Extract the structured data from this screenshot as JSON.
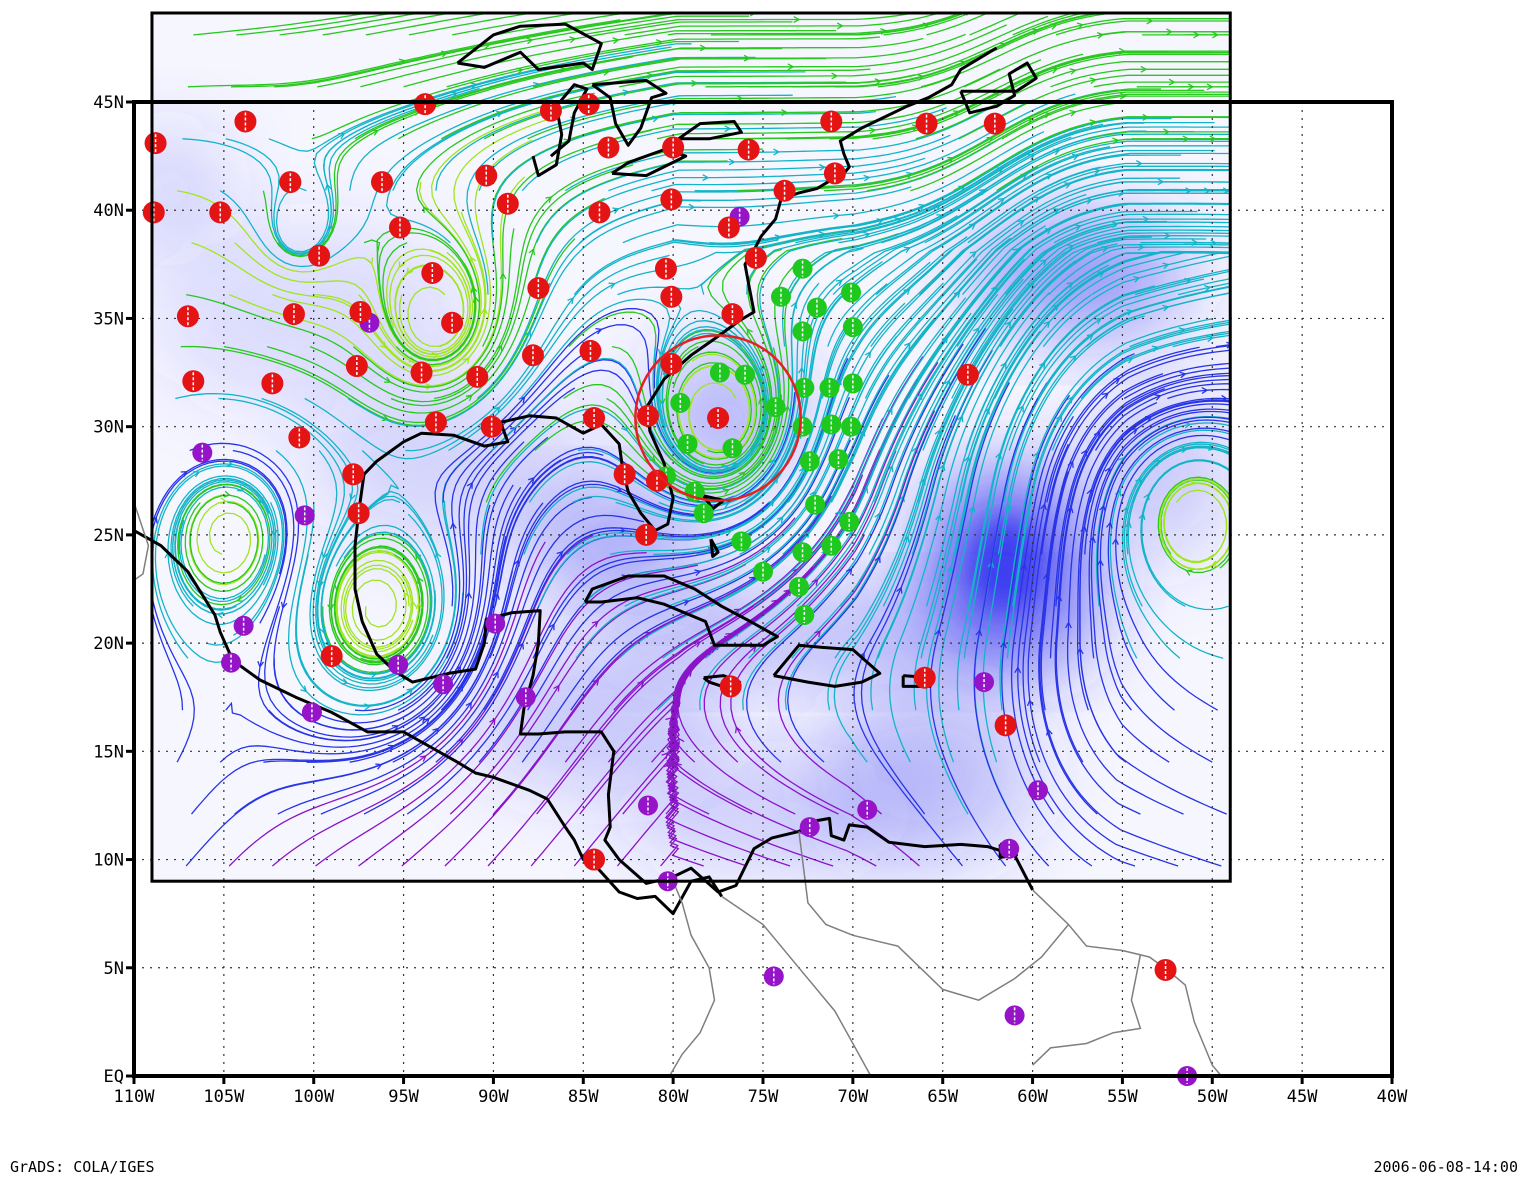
{
  "map": {
    "lat_labels": [
      "EQ",
      "5N",
      "10N",
      "15N",
      "20N",
      "25N",
      "30N",
      "35N",
      "40N",
      "45N"
    ],
    "lon_labels": [
      "110W",
      "105W",
      "100W",
      "95W",
      "90W",
      "85W",
      "80W",
      "75W",
      "70W",
      "65W",
      "60W",
      "55W",
      "50W",
      "45W",
      "40W"
    ],
    "grid": "dotted",
    "frame_extent": {
      "lon": [
        -110,
        -40
      ],
      "lat": [
        0,
        45
      ]
    },
    "field_extent": {
      "lon": [
        -109,
        -49
      ],
      "lat": [
        9,
        50
      ]
    },
    "colors": {
      "frame": "#000000",
      "coast": "#000000",
      "coast_outside": "#7f7f7f",
      "shading": "#3c3cf0",
      "circle": "#e52020"
    },
    "streamline_colors": [
      "#8a14c8",
      "#2834e6",
      "#14b4c8",
      "#28c81e",
      "#a0e61e"
    ],
    "marker_colors": {
      "red": "#e51414",
      "purple": "#9614c8",
      "green": "#1ec81e"
    },
    "storm_circle": {
      "center": [
        -77.5,
        30.4
      ],
      "radius_deg": 4.6
    },
    "markers": {
      "red": [
        [
          -108.8,
          43.1
        ],
        [
          -103.8,
          44.1
        ],
        [
          -93.8,
          44.9
        ],
        [
          -86.8,
          44.6
        ],
        [
          -84.7,
          44.9
        ],
        [
          -83.6,
          42.9
        ],
        [
          -80.0,
          42.9
        ],
        [
          -75.8,
          42.8
        ],
        [
          -71.2,
          44.1
        ],
        [
          -65.9,
          44.0
        ],
        [
          -62.1,
          44.0
        ],
        [
          -101.3,
          41.3
        ],
        [
          -96.2,
          41.3
        ],
        [
          -90.4,
          41.6
        ],
        [
          -89.2,
          40.3
        ],
        [
          -80.1,
          40.5
        ],
        [
          -108.9,
          39.9
        ],
        [
          -105.2,
          39.9
        ],
        [
          -95.2,
          39.2
        ],
        [
          -84.1,
          39.9
        ],
        [
          -76.9,
          39.2
        ],
        [
          -73.8,
          40.9
        ],
        [
          -71.0,
          41.7
        ],
        [
          -99.7,
          37.9
        ],
        [
          -93.4,
          37.1
        ],
        [
          -87.5,
          36.4
        ],
        [
          -80.4,
          37.3
        ],
        [
          -80.1,
          36.0
        ],
        [
          -75.4,
          37.8
        ],
        [
          -107.0,
          35.1
        ],
        [
          -101.1,
          35.2
        ],
        [
          -97.4,
          35.3
        ],
        [
          -92.3,
          34.8
        ],
        [
          -87.8,
          33.3
        ],
        [
          -84.6,
          33.5
        ],
        [
          -76.7,
          35.2
        ],
        [
          -106.7,
          32.1
        ],
        [
          -102.3,
          32.0
        ],
        [
          -97.6,
          32.8
        ],
        [
          -94.0,
          32.5
        ],
        [
          -90.9,
          32.3
        ],
        [
          -80.1,
          32.9
        ],
        [
          -63.6,
          32.4
        ],
        [
          -100.8,
          29.5
        ],
        [
          -93.2,
          30.2
        ],
        [
          -90.1,
          30.0
        ],
        [
          -84.4,
          30.4
        ],
        [
          -81.4,
          30.5
        ],
        [
          -77.5,
          30.4
        ],
        [
          -97.8,
          27.8
        ],
        [
          -82.7,
          27.8
        ],
        [
          -80.9,
          27.5
        ],
        [
          -97.5,
          26.0
        ],
        [
          -81.5,
          25.0
        ],
        [
          -99.0,
          19.4
        ],
        [
          -76.8,
          18.0
        ],
        [
          -66.0,
          18.4
        ],
        [
          -61.5,
          16.2
        ],
        [
          -84.4,
          10.0
        ],
        [
          -52.6,
          4.9
        ]
      ],
      "purple": [
        [
          -76.3,
          39.7
        ],
        [
          -96.9,
          34.8
        ],
        [
          -106.2,
          28.8
        ],
        [
          -100.5,
          25.9
        ],
        [
          -103.9,
          20.8
        ],
        [
          -104.6,
          19.1
        ],
        [
          -95.3,
          19.0
        ],
        [
          -92.8,
          18.1
        ],
        [
          -89.9,
          20.9
        ],
        [
          -88.2,
          17.5
        ],
        [
          -100.1,
          16.8
        ],
        [
          -81.4,
          12.5
        ],
        [
          -72.4,
          11.5
        ],
        [
          -69.2,
          12.3
        ],
        [
          -62.7,
          18.2
        ],
        [
          -59.7,
          13.2
        ],
        [
          -61.3,
          10.5
        ],
        [
          -80.3,
          9.0
        ],
        [
          -74.4,
          4.6
        ],
        [
          -61.0,
          2.8
        ],
        [
          -51.4,
          0.0
        ]
      ],
      "green": [
        [
          -72.8,
          37.3
        ],
        [
          -74.0,
          36.0
        ],
        [
          -72.0,
          35.5
        ],
        [
          -70.1,
          36.2
        ],
        [
          -72.8,
          34.4
        ],
        [
          -70.0,
          34.6
        ],
        [
          -76.0,
          32.4
        ],
        [
          -72.7,
          31.8
        ],
        [
          -71.3,
          31.8
        ],
        [
          -70.0,
          32.0
        ],
        [
          -79.6,
          31.1
        ],
        [
          -77.4,
          32.5
        ],
        [
          -74.3,
          30.9
        ],
        [
          -72.8,
          30.0
        ],
        [
          -71.2,
          30.1
        ],
        [
          -70.1,
          30.0
        ],
        [
          -79.2,
          29.2
        ],
        [
          -76.7,
          29.0
        ],
        [
          -72.4,
          28.4
        ],
        [
          -70.8,
          28.5
        ],
        [
          -80.4,
          27.7
        ],
        [
          -78.8,
          27.0
        ],
        [
          -78.3,
          26.0
        ],
        [
          -72.1,
          26.4
        ],
        [
          -70.2,
          25.6
        ],
        [
          -76.2,
          24.7
        ],
        [
          -72.8,
          24.2
        ],
        [
          -71.2,
          24.5
        ],
        [
          -75.0,
          23.3
        ],
        [
          -73.0,
          22.6
        ],
        [
          -72.7,
          21.3
        ]
      ]
    }
  },
  "footer": {
    "left": "GrADS: COLA/IGES",
    "right": "2006-06-08-14:00"
  }
}
